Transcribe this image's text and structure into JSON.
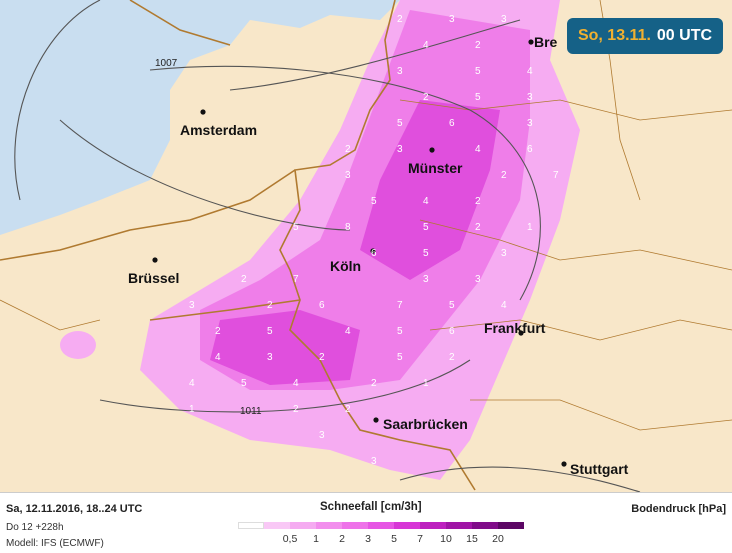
{
  "header": {
    "date": "So, 13.11.",
    "time": "00 UTC"
  },
  "map": {
    "colors": {
      "sea": "#c9def0",
      "land": "#f8e7c9",
      "snow_light": "#f6acf2",
      "snow_mid": "#ef7ee9",
      "snow_dark": "#e04fdd",
      "border": "#b07a30",
      "isobar": "#555555"
    },
    "cities": [
      {
        "name": "Amsterdam"
      },
      {
        "name": "Münster"
      },
      {
        "name": "Brüssel"
      },
      {
        "name": "Köln"
      },
      {
        "name": "Frankfurt"
      },
      {
        "name": "Saarbrücken"
      },
      {
        "name": "Stuttgart"
      },
      {
        "name": "Bre"
      }
    ],
    "isobar_labels": [
      "1007",
      "1011"
    ],
    "grid_values": [
      "2",
      "3",
      "3",
      "4",
      "2",
      "3",
      "5",
      "4",
      "2",
      "5",
      "3",
      "5",
      "6",
      "3",
      "2",
      "3",
      "4",
      "6",
      "3",
      "2",
      "7",
      "5",
      "4",
      "2",
      "5",
      "8",
      "5",
      "2",
      "1",
      "6",
      "5",
      "3",
      "2",
      "7",
      "3",
      "3",
      "3",
      "2",
      "6",
      "7",
      "5",
      "4",
      "2",
      "5",
      "4",
      "5",
      "6",
      "4",
      "3",
      "2",
      "5",
      "2",
      "4",
      "5",
      "4",
      "2",
      "1",
      "1",
      "2",
      "2",
      "3",
      "3"
    ]
  },
  "footer": {
    "run": "Sa, 12.11.2016, 18..24 UTC",
    "lead": "Do 12 +228h",
    "model": "Modell: IFS (ECMWF)",
    "legend_title": "Schneefall [cm/3h]",
    "pressure_title": "Bodendruck [hPa]",
    "scale_colors": [
      "#ffffff",
      "#f9c8f6",
      "#f5abf1",
      "#f28eed",
      "#ee72e9",
      "#e655e4",
      "#d736d6",
      "#bd20bf",
      "#a014a6",
      "#800b89",
      "#5c0664"
    ],
    "scale_ticks": [
      "0,5",
      "1",
      "2",
      "3",
      "5",
      "7",
      "10",
      "15",
      "20"
    ]
  }
}
